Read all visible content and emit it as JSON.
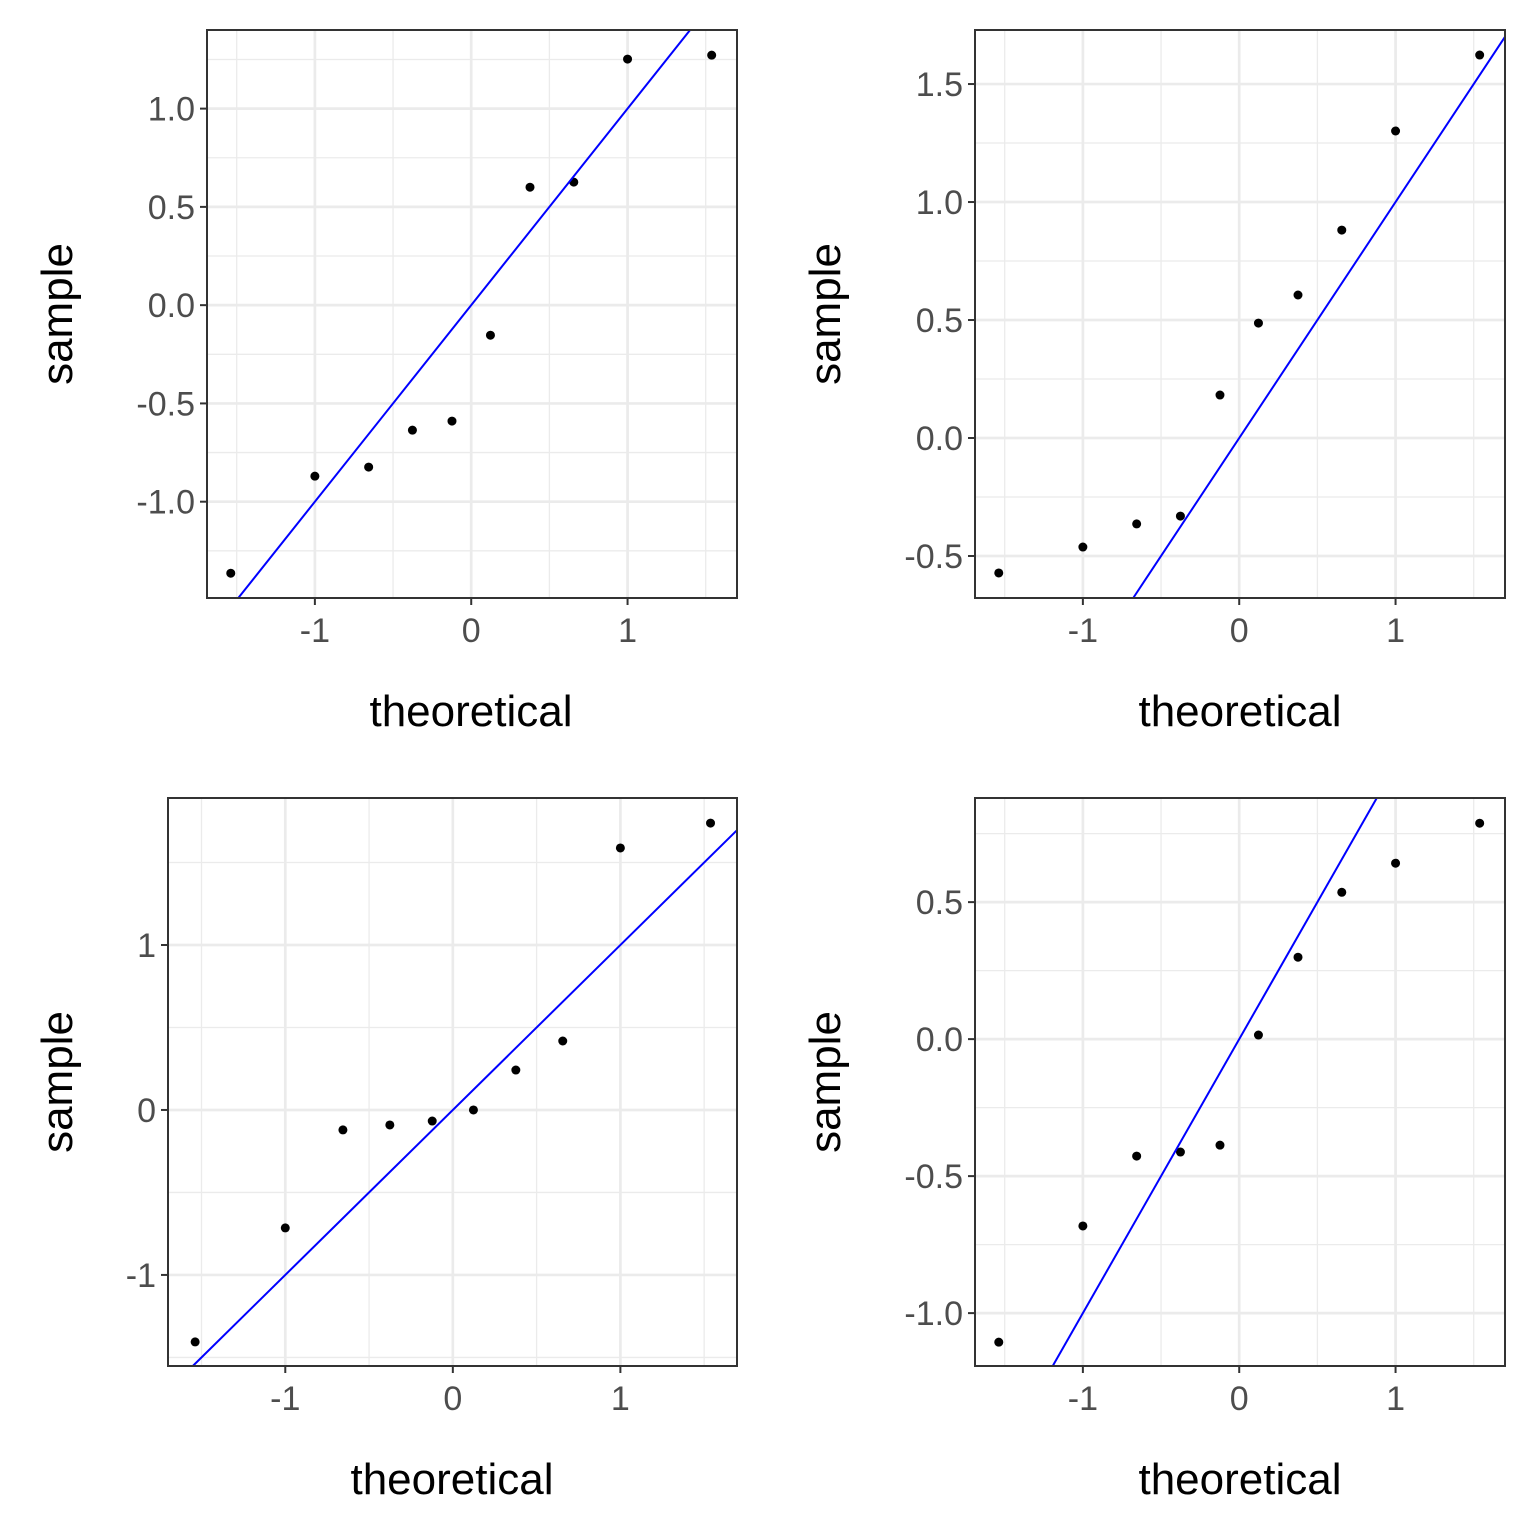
{
  "chart_data": [
    {
      "type": "scatter",
      "subtype": "qq-plot",
      "xlabel": "theoretical",
      "ylabel": "sample",
      "xlim": [
        -1.69,
        1.7
      ],
      "ylim": [
        -1.49,
        1.4
      ],
      "xticks": [
        -1,
        0,
        1
      ],
      "xtick_labels": [
        "-1",
        "0",
        "1"
      ],
      "yticks": [
        -1.0,
        -0.5,
        0.0,
        0.5,
        1.0
      ],
      "ytick_labels": [
        "-1.0",
        "-0.5",
        "0.0",
        "0.5",
        "1.0"
      ],
      "grid": true,
      "x": [
        -1.538,
        -1.0,
        -0.656,
        -0.376,
        -0.123,
        0.123,
        0.376,
        0.656,
        1.0,
        1.538
      ],
      "y": [
        -1.364,
        -0.87,
        -0.824,
        -0.636,
        -0.59,
        -0.153,
        0.6,
        0.626,
        1.252,
        1.272
      ],
      "reference_line": {
        "slope": 1,
        "intercept": 0,
        "color": "#0000ff"
      },
      "point_color": "#000000"
    },
    {
      "type": "scatter",
      "subtype": "qq-plot",
      "xlabel": "theoretical",
      "ylabel": "sample",
      "xlim": [
        -1.69,
        1.7
      ],
      "ylim": [
        -0.678,
        1.729
      ],
      "xticks": [
        -1,
        0,
        1
      ],
      "xtick_labels": [
        "-1",
        "0",
        "1"
      ],
      "yticks": [
        -0.5,
        0.0,
        0.5,
        1.0,
        1.5
      ],
      "ytick_labels": [
        "-0.5",
        "0.0",
        "0.5",
        "1.0",
        "1.5"
      ],
      "grid": true,
      "x": [
        -1.538,
        -1.0,
        -0.656,
        -0.376,
        -0.123,
        0.123,
        0.376,
        0.656,
        1.0,
        1.538
      ],
      "y": [
        -0.572,
        -0.462,
        -0.364,
        -0.331,
        0.182,
        0.487,
        0.606,
        0.881,
        1.301,
        1.623
      ],
      "reference_line": {
        "slope": 1,
        "intercept": 0,
        "color": "#0000ff"
      },
      "point_color": "#000000"
    },
    {
      "type": "scatter",
      "subtype": "qq-plot",
      "xlabel": "theoretical",
      "ylabel": "sample",
      "xlim": [
        -1.7,
        1.696
      ],
      "ylim": [
        -1.552,
        1.891
      ],
      "xticks": [
        -1,
        0,
        1
      ],
      "xtick_labels": [
        "-1",
        "0",
        "1"
      ],
      "yticks": [
        -1,
        0,
        1
      ],
      "ytick_labels": [
        "-1",
        "0",
        "1"
      ],
      "grid": true,
      "x": [
        -1.538,
        -1.0,
        -0.656,
        -0.376,
        -0.123,
        0.123,
        0.376,
        0.656,
        1.0,
        1.538
      ],
      "y": [
        -1.406,
        -0.715,
        -0.121,
        -0.091,
        -0.067,
        0.0,
        0.242,
        0.418,
        1.588,
        1.739
      ],
      "reference_line": {
        "slope": 1,
        "intercept": 0,
        "color": "#0000ff"
      },
      "point_color": "#000000"
    },
    {
      "type": "scatter",
      "subtype": "qq-plot",
      "xlabel": "theoretical",
      "ylabel": "sample",
      "xlim": [
        -1.69,
        1.7
      ],
      "ylim": [
        -1.193,
        0.88
      ],
      "xticks": [
        -1,
        0,
        1
      ],
      "xtick_labels": [
        "-1",
        "0",
        "1"
      ],
      "yticks": [
        -1.0,
        -0.5,
        0.0,
        0.5
      ],
      "ytick_labels": [
        "-1.0",
        "-0.5",
        "0.0",
        "0.5"
      ],
      "grid": true,
      "x": [
        -1.538,
        -1.0,
        -0.656,
        -0.376,
        -0.123,
        0.123,
        0.376,
        0.656,
        1.0,
        1.538
      ],
      "y": [
        -1.106,
        -0.682,
        -0.427,
        -0.412,
        -0.387,
        0.015,
        0.299,
        0.536,
        0.642,
        0.788
      ],
      "reference_line": {
        "slope": 1,
        "intercept": 0,
        "color": "#0000ff"
      },
      "point_color": "#000000"
    }
  ]
}
